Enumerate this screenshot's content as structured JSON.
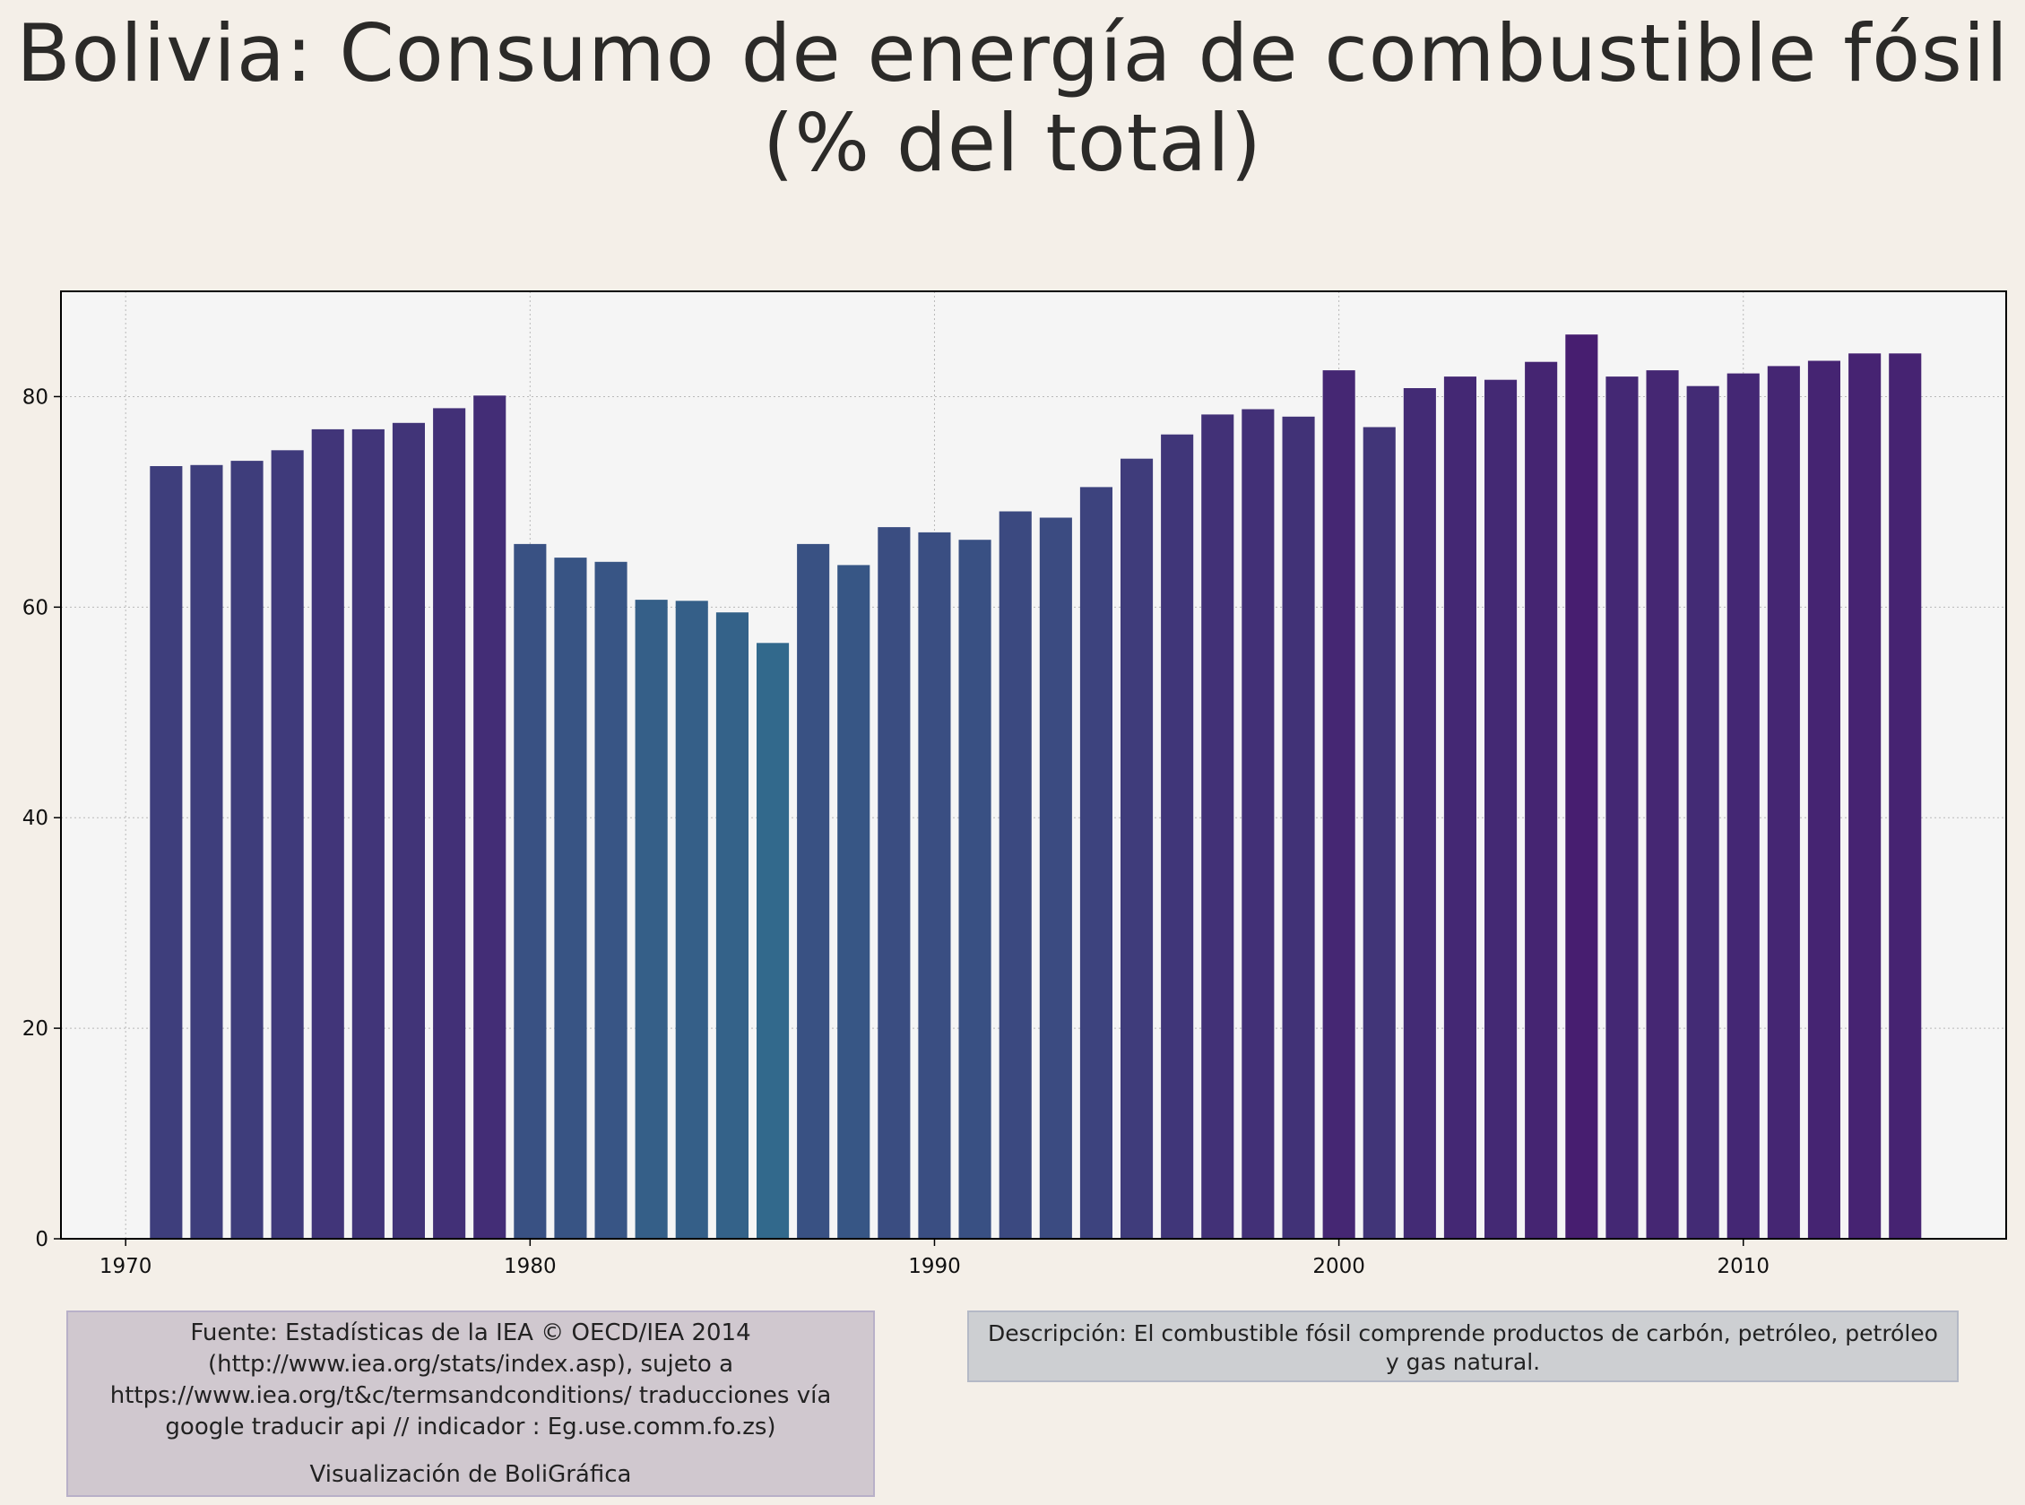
{
  "title_line1": "Bolivia:  Consumo de energía de combustible fósil",
  "title_line2": "(% del total)",
  "source_text": "Fuente: Estadísticas de la IEA © OECD/IEA 2014 (http://www.iea.org/stats/index.asp), sujeto a https://www.iea.org/t&c/termsandconditions/ traducciones vía google traducir api // indicador : Eg.use.comm.fo.zs)",
  "credit_text": "Visualización de BoliGráfica",
  "description_text": "Descripción: El combustible fósil comprende productos de carbón, petróleo, petróleo y gas natural.",
  "colors": {
    "background": "#f4efe8",
    "plot_background": "#f5f5f5",
    "bar_dark": "#471e70",
    "bar_light": "#32698c"
  },
  "chart_data": {
    "type": "bar",
    "title": "Bolivia:  Consumo de energía de combustible fósil (% del total)",
    "xlabel": "",
    "ylabel": "",
    "x": [
      1971,
      1972,
      1973,
      1974,
      1975,
      1976,
      1977,
      1978,
      1979,
      1980,
      1981,
      1982,
      1983,
      1984,
      1985,
      1986,
      1987,
      1988,
      1989,
      1990,
      1991,
      1992,
      1993,
      1994,
      1995,
      1996,
      1997,
      1998,
      1999,
      2000,
      2001,
      2002,
      2003,
      2004,
      2005,
      2006,
      2007,
      2008,
      2009,
      2010,
      2011,
      2012,
      2013,
      2014
    ],
    "values": [
      73.4,
      73.5,
      73.9,
      74.9,
      76.9,
      76.9,
      77.5,
      78.9,
      80.1,
      66.0,
      64.7,
      64.3,
      60.7,
      60.6,
      59.5,
      56.6,
      66.0,
      64.0,
      67.6,
      67.1,
      66.4,
      69.1,
      68.5,
      71.4,
      74.1,
      76.4,
      78.3,
      78.8,
      78.1,
      82.5,
      77.1,
      80.8,
      81.9,
      81.6,
      83.3,
      85.9,
      81.9,
      82.5,
      81.0,
      82.2,
      82.9,
      83.4,
      84.1,
      84.1
    ],
    "xlim": [
      1968.4,
      2016.5
    ],
    "ylim": [
      0,
      90
    ],
    "xticks": [
      1970,
      1980,
      1990,
      2000,
      2010
    ],
    "yticks": [
      0,
      20,
      40,
      60,
      80
    ],
    "grid": true,
    "color_scale": "viridis-like: lower values lighter teal, higher values deeper purple"
  }
}
